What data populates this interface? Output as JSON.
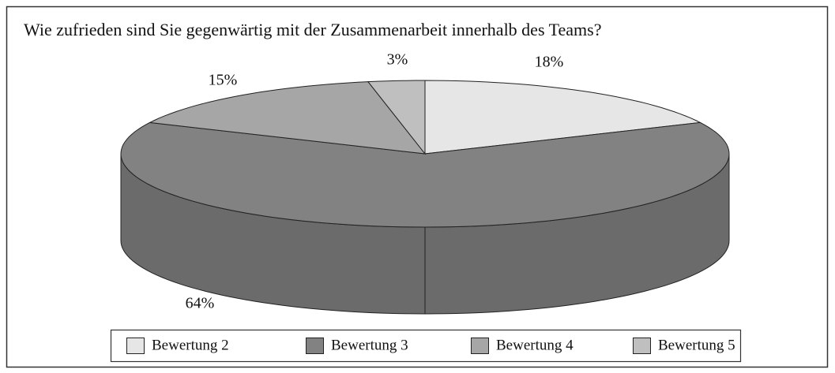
{
  "chart_data": {
    "type": "pie",
    "title": "Wie zufrieden sind Sie gegenwärtig mit der Zusammenarbeit innerhalb des Teams?",
    "categories": [
      "Bewertung 2",
      "Bewertung 3",
      "Bewertung 4",
      "Bewertung 5"
    ],
    "values": [
      18,
      64,
      15,
      3
    ],
    "value_labels": [
      "18%",
      "64%",
      "15%",
      "3%"
    ],
    "colors": [
      "#e6e6e6",
      "#828282",
      "#a6a6a6",
      "#bfbfbf"
    ],
    "legend": "bottom"
  }
}
